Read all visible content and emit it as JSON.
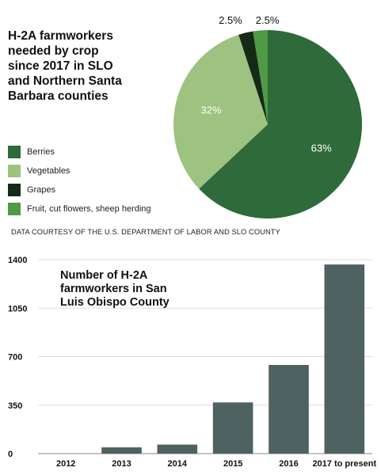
{
  "chart_data": [
    {
      "type": "pie",
      "title": "H-2A farmworkers\nneeded by crop\nsince 2017 in SLO\nand Northern Santa\nBarbara counties",
      "slices": [
        {
          "name": "Berries",
          "value": 63,
          "label": "63%",
          "color": "#2e6a3a"
        },
        {
          "name": "Vegetables",
          "value": 32,
          "label": "32%",
          "color": "#9ec27f"
        },
        {
          "name": "Grapes",
          "value": 2.5,
          "label": "2.5%",
          "color": "#142a17"
        },
        {
          "name": "Fruit, cut flowers, sheep herding",
          "value": 2.5,
          "label": "2.5%",
          "color": "#4f9a45"
        }
      ],
      "legend_position": "left"
    },
    {
      "type": "bar",
      "title": "Number of H-2A\nfarmworkers in San\nLuis Obispo County",
      "categories": [
        "2012",
        "2013",
        "2014",
        "2015",
        "2016",
        "2017 to present"
      ],
      "values": [
        0,
        45,
        65,
        370,
        640,
        1365
      ],
      "yticks": [
        0,
        350,
        700,
        1050,
        1400
      ],
      "ylim": [
        0,
        1400
      ],
      "grid": true,
      "bar_color": "#4d6261"
    }
  ],
  "source_note": "DATA COURTESY OF THE U.S. DEPARTMENT OF LABOR AND SLO COUNTY"
}
